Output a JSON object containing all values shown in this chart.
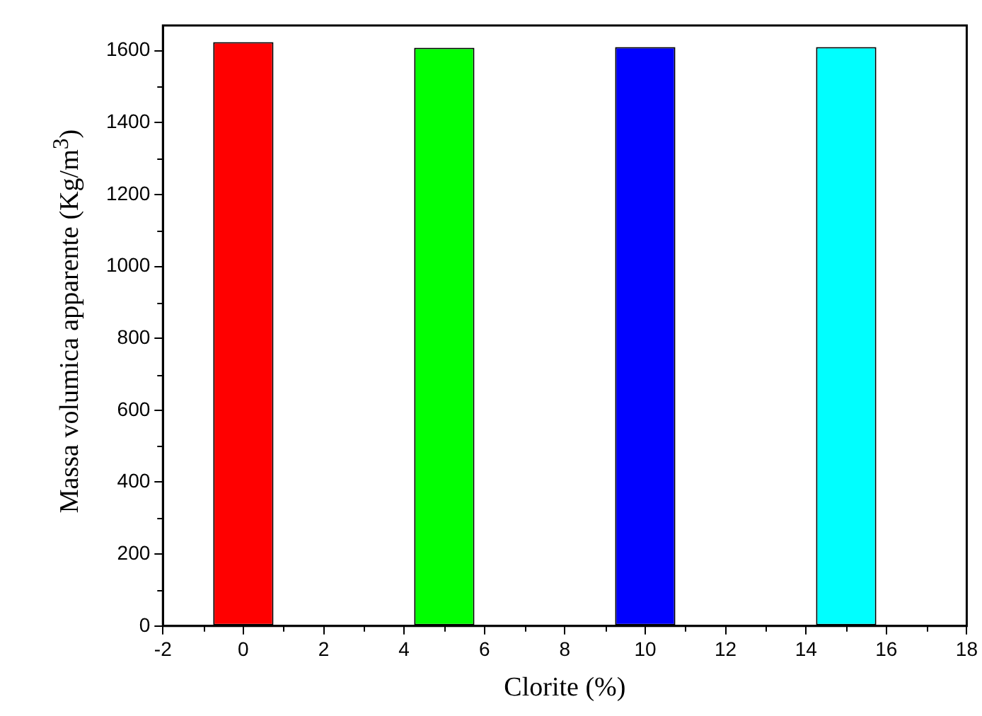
{
  "chart_data": {
    "type": "bar",
    "xlabel": "Clorite (%)",
    "ylabel": "Massa volumica apparente  (Kg/m$^{3}$)",
    "x": [
      0,
      5,
      10,
      15
    ],
    "values": [
      1624,
      1608,
      1610,
      1610
    ],
    "colors": [
      "#ff0000",
      "#00ff00",
      "#0000ff",
      "#00ffff"
    ],
    "xlim": [
      -2,
      18
    ],
    "xticks": [
      -2,
      {
        "value": -1,
        "label": null
      },
      0,
      {
        "value": 1,
        "label": null
      },
      2,
      {
        "value": 3,
        "label": null
      },
      4,
      {
        "value": 5,
        "label": null
      },
      6,
      {
        "value": 7,
        "label": null
      },
      8,
      {
        "value": 9,
        "label": null
      },
      10,
      {
        "value": 11,
        "label": null
      },
      12,
      {
        "value": 13,
        "label": null
      },
      14,
      {
        "value": 15,
        "label": null
      },
      16,
      {
        "value": 17,
        "label": null
      },
      18
    ],
    "ylim": [
      0,
      1670
    ],
    "yticks": [
      0,
      {
        "value": 100,
        "label": null
      },
      200,
      {
        "value": 300,
        "label": null
      },
      400,
      {
        "value": 500,
        "label": null
      },
      600,
      {
        "value": 700,
        "label": null
      },
      800,
      {
        "value": 900,
        "label": null
      },
      1000,
      {
        "value": 1100,
        "label": null
      },
      1200,
      {
        "value": 1300,
        "label": null
      },
      1400,
      {
        "value": 1500,
        "label": null
      },
      1600
    ],
    "grid": false,
    "legend": false
  }
}
